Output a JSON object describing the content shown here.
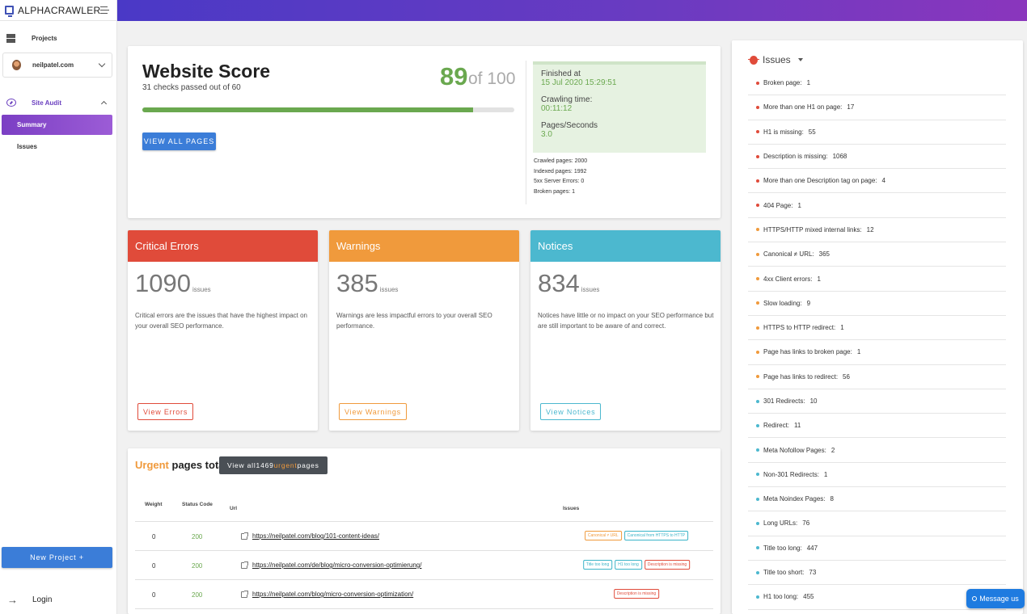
{
  "app": {
    "name": "ALPHACRAWLER"
  },
  "sidebar": {
    "projects_label": "Projects",
    "project_name": "neilpatel.com",
    "site_audit_label": "Site Audit",
    "items": [
      {
        "label": "Summary"
      },
      {
        "label": "Issues"
      }
    ],
    "new_project_label": "New Project +",
    "login_label": "Login"
  },
  "score": {
    "title": "Website Score",
    "subtitle": "31 checks passed out of 60",
    "value": "89",
    "of_label": "of 100",
    "progress_percent": 89,
    "view_all_label": "VIEW ALL PAGES",
    "finished_label": "Finished at",
    "finished_value": "15 Jul 2020 15:29:51",
    "crawling_label": "Crawling time:",
    "crawling_value": "00:11:12",
    "pps_label": "Pages/Seconds",
    "pps_value": "3.0",
    "crawled": "Crawled pages:  2000",
    "indexed": "Indexed pages:  1992",
    "server_errors": "5xx Server Errors:  0",
    "broken": "Broken pages:  1"
  },
  "cards": {
    "errors": {
      "title": "Critical Errors",
      "count": "1090",
      "count_label": "issues",
      "desc": "Critical errors are the issues that have the highest impact on your overall SEO performance.",
      "button": "View Errors",
      "color": "#e04b3a"
    },
    "warnings": {
      "title": "Warnings",
      "count": "385",
      "count_label": "issues",
      "desc": "Warnings are less impactful errors to your overall SEO performance.",
      "button": "View Warnings",
      "color": "#f09a3c"
    },
    "notices": {
      "title": "Notices",
      "count": "834",
      "count_label": "issues",
      "desc": "Notices have little or no impact on your SEO performance but are still important to be aware of and correct.",
      "button": "View Notices",
      "color": "#4cb8cf"
    }
  },
  "urgent": {
    "title_accent": "Urgent",
    "title_rest": " pages total:",
    "btn_prefix": "View all",
    "btn_count": "1469",
    "btn_accent": "urgent",
    "btn_suffix": "pages",
    "headers": {
      "weight": "Weight",
      "status": "Status Code",
      "url": "Url",
      "issues": "Issues"
    },
    "rows": [
      {
        "weight": "0",
        "status": "200",
        "url": "https://neilpatel.com/blog/101-content-ideas/",
        "tags": [
          {
            "label": "Canonical ≠ URL",
            "color": "orange"
          },
          {
            "label": "Canonical from HTTPS to HTTP",
            "color": "teal"
          }
        ]
      },
      {
        "weight": "0",
        "status": "200",
        "url": "https://neilpatel.com/de/blog/micro-conversion-optimierung/",
        "tags": [
          {
            "label": "Title too long",
            "color": "teal"
          },
          {
            "label": "H1 too long",
            "color": "teal"
          },
          {
            "label": "Description is missing",
            "color": "red"
          }
        ]
      },
      {
        "weight": "0",
        "status": "200",
        "url": "https://neilpatel.com/blog/micro-conversion-optimization/",
        "tags": [
          {
            "label": "Description is missing",
            "color": "red"
          }
        ]
      }
    ]
  },
  "issues_panel": {
    "title": "Issues",
    "items": [
      {
        "label": "Broken page:",
        "value": "1",
        "color": "#e04b3a"
      },
      {
        "label": "More than one H1 on page:",
        "value": "17",
        "color": "#e04b3a"
      },
      {
        "label": "H1 is missing:",
        "value": "55",
        "color": "#e04b3a"
      },
      {
        "label": "Description is missing:",
        "value": "1068",
        "color": "#e04b3a"
      },
      {
        "label": "More than one Description tag on page:",
        "value": "4",
        "color": "#e04b3a"
      },
      {
        "label": "404 Page:",
        "value": "1",
        "color": "#e04b3a"
      },
      {
        "label": "HTTPS/HTTP mixed internal links:",
        "value": "12",
        "color": "#f09a3c"
      },
      {
        "label": "Canonical ≠ URL:",
        "value": "365",
        "color": "#f09a3c"
      },
      {
        "label": "4xx Client errors:",
        "value": "1",
        "color": "#f09a3c"
      },
      {
        "label": "Slow loading:",
        "value": "9",
        "color": "#f09a3c"
      },
      {
        "label": "HTTPS to HTTP redirect:",
        "value": "1",
        "color": "#f09a3c"
      },
      {
        "label": "Page has links to broken page:",
        "value": "1",
        "color": "#f09a3c"
      },
      {
        "label": "Page has links to redirect:",
        "value": "56",
        "color": "#f09a3c"
      },
      {
        "label": "301 Redirects:",
        "value": "10",
        "color": "#4cb8cf"
      },
      {
        "label": "Redirect:",
        "value": "11",
        "color": "#4cb8cf"
      },
      {
        "label": "Meta Nofollow Pages:",
        "value": "2",
        "color": "#4cb8cf"
      },
      {
        "label": "Non-301 Redirects:",
        "value": "1",
        "color": "#4cb8cf"
      },
      {
        "label": "Meta Noindex Pages:",
        "value": "8",
        "color": "#4cb8cf"
      },
      {
        "label": "Long URLs:",
        "value": "76",
        "color": "#4cb8cf"
      },
      {
        "label": "Title too long:",
        "value": "447",
        "color": "#4cb8cf"
      },
      {
        "label": "Title too short:",
        "value": "73",
        "color": "#4cb8cf"
      },
      {
        "label": "H1 too long:",
        "value": "455",
        "color": "#4cb8cf"
      }
    ]
  },
  "chat": {
    "label": "Message us"
  }
}
